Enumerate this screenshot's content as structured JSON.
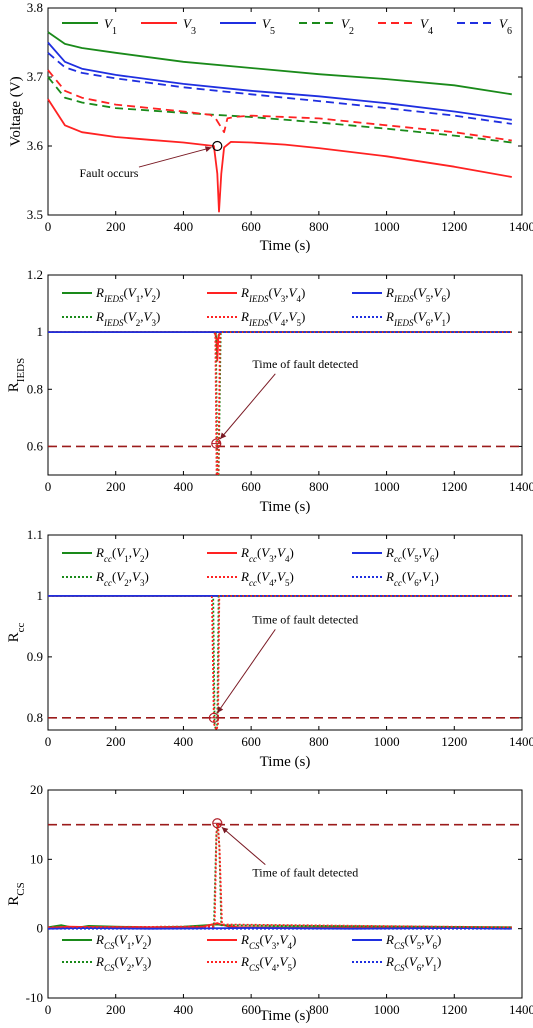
{
  "chart_data": [
    {
      "type": "line",
      "xlabel": "Time (s)",
      "ylabel": "Voltage (V)",
      "xlim": [
        0,
        1400
      ],
      "ylim": [
        3.5,
        3.8
      ],
      "xticks": [
        "0",
        "200",
        "400",
        "600",
        "800",
        "1000",
        "1200",
        "1400"
      ],
      "yticks": [
        "3.5",
        "3.6",
        "3.7",
        "3.8"
      ],
      "legend_position": "top",
      "series": [
        {
          "name": "V",
          "sub": "1",
          "color": "#1a8a1a",
          "dash": "solid",
          "x": [
            0,
            50,
            100,
            200,
            400,
            600,
            800,
            1000,
            1200,
            1370
          ],
          "y": [
            3.765,
            3.748,
            3.742,
            3.735,
            3.722,
            3.713,
            3.704,
            3.697,
            3.688,
            3.675
          ]
        },
        {
          "name": "V",
          "sub": "3",
          "color": "#ff2222",
          "dash": "solid",
          "x": [
            0,
            50,
            100,
            200,
            300,
            400,
            490,
            500,
            505,
            512,
            520,
            540,
            600,
            700,
            800,
            1000,
            1200,
            1370
          ],
          "y": [
            3.668,
            3.63,
            3.62,
            3.613,
            3.609,
            3.605,
            3.6,
            3.56,
            3.505,
            3.56,
            3.598,
            3.606,
            3.605,
            3.602,
            3.597,
            3.585,
            3.57,
            3.555
          ]
        },
        {
          "name": "V",
          "sub": "5",
          "color": "#1f2fe0",
          "dash": "solid",
          "x": [
            0,
            50,
            100,
            200,
            400,
            600,
            800,
            1000,
            1200,
            1370
          ],
          "y": [
            3.75,
            3.722,
            3.712,
            3.703,
            3.69,
            3.68,
            3.672,
            3.662,
            3.65,
            3.638
          ]
        },
        {
          "name": "V",
          "sub": "2",
          "color": "#1a8a1a",
          "dash": "dash",
          "x": [
            0,
            50,
            100,
            200,
            400,
            600,
            800,
            1000,
            1200,
            1370
          ],
          "y": [
            3.7,
            3.67,
            3.663,
            3.655,
            3.648,
            3.642,
            3.634,
            3.625,
            3.615,
            3.605
          ]
        },
        {
          "name": "V",
          "sub": "4",
          "color": "#ff2222",
          "dash": "dash",
          "x": [
            0,
            50,
            100,
            200,
            400,
            480,
            495,
            520,
            530,
            550,
            600,
            800,
            1000,
            1200,
            1370
          ],
          "y": [
            3.71,
            3.68,
            3.67,
            3.66,
            3.65,
            3.645,
            3.64,
            3.62,
            3.64,
            3.642,
            3.644,
            3.64,
            3.63,
            3.62,
            3.608
          ]
        },
        {
          "name": "V",
          "sub": "6",
          "color": "#1f2fe0",
          "dash": "dash",
          "x": [
            0,
            50,
            100,
            200,
            400,
            600,
            800,
            1000,
            1200,
            1370
          ],
          "y": [
            3.735,
            3.714,
            3.706,
            3.698,
            3.685,
            3.675,
            3.665,
            3.655,
            3.644,
            3.632
          ]
        }
      ],
      "marker": {
        "x": 500,
        "y": 3.6
      },
      "annotation": {
        "text": "Fault occurs",
        "x": 180,
        "y": 3.555
      }
    },
    {
      "type": "line",
      "xlabel": "Time (s)",
      "ylabel": "R",
      "ylabel_sub": "IEDS",
      "xlim": [
        0,
        1400
      ],
      "ylim": [
        0.5,
        1.2
      ],
      "xticks": [
        "0",
        "200",
        "400",
        "600",
        "800",
        "1000",
        "1200",
        "1400"
      ],
      "yticks": [
        "0.6",
        "0.8",
        "1",
        "1.2"
      ],
      "ytick_values": [
        0.6,
        0.8,
        1.0,
        1.2
      ],
      "legend_position": "top",
      "legend_sym": "R",
      "legend_sub": "IEDS",
      "legend_pairs": [
        [
          "1",
          "2"
        ],
        [
          "3",
          "4"
        ],
        [
          "5",
          "6"
        ],
        [
          "2",
          "3"
        ],
        [
          "4",
          "5"
        ],
        [
          "6",
          "1"
        ]
      ],
      "series": [
        {
          "name": "R_IEDS(V1,V2)",
          "color": "#1a8a1a",
          "dash": "solid",
          "x": [
            0,
            490,
            496,
            500,
            504,
            510,
            1370
          ],
          "y": [
            1.0,
            1.0,
            0.99,
            0.95,
            0.99,
            1.0,
            1.0
          ]
        },
        {
          "name": "R_IEDS(V3,V4)",
          "color": "#ff2222",
          "dash": "solid",
          "x": [
            0,
            492,
            497,
            500,
            503,
            508,
            1370
          ],
          "y": [
            1.0,
            1.0,
            0.98,
            0.9,
            0.98,
            1.0,
            1.0
          ]
        },
        {
          "name": "R_IEDS(V5,V6)",
          "color": "#1f2fe0",
          "dash": "solid",
          "x": [
            0,
            1370
          ],
          "y": [
            1.0,
            1.0
          ]
        },
        {
          "name": "R_IEDS(V2,V3)",
          "color": "#1a8a1a",
          "dash": "dot",
          "x": [
            0,
            496,
            500,
            504,
            510,
            1370
          ],
          "y": [
            1.0,
            1.0,
            0.5,
            0.5,
            1.0,
            1.0
          ]
        },
        {
          "name": "R_IEDS(V4,V5)",
          "color": "#ff2222",
          "dash": "dot",
          "x": [
            0,
            494,
            498,
            503,
            508,
            1370
          ],
          "y": [
            1.0,
            1.0,
            0.5,
            0.5,
            1.0,
            1.0
          ]
        },
        {
          "name": "R_IEDS(V6,V1)",
          "color": "#1f2fe0",
          "dash": "dot",
          "x": [
            0,
            1370
          ],
          "y": [
            1.0,
            1.0
          ]
        }
      ],
      "threshold": 0.6,
      "marker": {
        "x": 497,
        "y": 0.61
      },
      "annotation": {
        "text": "Time of fault detected",
        "x": 760,
        "y": 0.875
      }
    },
    {
      "type": "line",
      "xlabel": "Time (s)",
      "ylabel": "R",
      "ylabel_sub": "cc",
      "xlim": [
        0,
        1400
      ],
      "ylim": [
        0.78,
        1.1
      ],
      "xticks": [
        "0",
        "200",
        "400",
        "600",
        "800",
        "1000",
        "1200",
        "1400"
      ],
      "yticks": [
        "0.8",
        "0.9",
        "1",
        "1.1"
      ],
      "ytick_values": [
        0.8,
        0.9,
        1.0,
        1.1
      ],
      "legend_position": "top",
      "legend_sym": "R",
      "legend_sub": "cc",
      "legend_pairs": [
        [
          "1",
          "2"
        ],
        [
          "3",
          "4"
        ],
        [
          "5",
          "6"
        ],
        [
          "2",
          "3"
        ],
        [
          "4",
          "5"
        ],
        [
          "6",
          "1"
        ]
      ],
      "series": [
        {
          "name": "R_cc(V1,V2)",
          "color": "#1a8a1a",
          "dash": "solid",
          "x": [
            0,
            1370
          ],
          "y": [
            1.0,
            1.0
          ]
        },
        {
          "name": "R_cc(V3,V4)",
          "color": "#ff2222",
          "dash": "solid",
          "x": [
            0,
            1370
          ],
          "y": [
            1.0,
            1.0
          ]
        },
        {
          "name": "R_cc(V5,V6)",
          "color": "#1f2fe0",
          "dash": "solid",
          "x": [
            0,
            1370
          ],
          "y": [
            1.0,
            1.0
          ]
        },
        {
          "name": "R_cc(V2,V3)",
          "color": "#1a8a1a",
          "dash": "dot",
          "x": [
            0,
            488,
            492,
            496,
            500,
            504,
            1370
          ],
          "y": [
            1.0,
            1.0,
            0.79,
            0.78,
            0.79,
            1.0,
            1.0
          ]
        },
        {
          "name": "R_cc(V4,V5)",
          "color": "#ff2222",
          "dash": "dot",
          "x": [
            0,
            484,
            490,
            498,
            502,
            506,
            1370
          ],
          "y": [
            1.0,
            1.0,
            0.79,
            0.78,
            0.79,
            1.0,
            1.0
          ]
        },
        {
          "name": "R_cc(V6,V1)",
          "color": "#1f2fe0",
          "dash": "dot",
          "x": [
            0,
            1370
          ],
          "y": [
            1.0,
            1.0
          ]
        }
      ],
      "threshold": 0.8,
      "marker": {
        "x": 490,
        "y": 0.8
      },
      "annotation": {
        "text": "Time of fault detected",
        "x": 760,
        "y": 0.955
      }
    },
    {
      "type": "line",
      "xlabel": "Time (s)",
      "ylabel": "R",
      "ylabel_sub": "CS",
      "xlim": [
        0,
        1400
      ],
      "ylim": [
        -10,
        20
      ],
      "xticks": [
        "0",
        "200",
        "400",
        "600",
        "800",
        "1000",
        "1200",
        "1400"
      ],
      "yticks": [
        "-10",
        "0",
        "10",
        "20"
      ],
      "ytick_values": [
        -10,
        0,
        10,
        20
      ],
      "legend_position": "bottom",
      "legend_sym": "R",
      "legend_sub": "CS",
      "legend_pairs": [
        [
          "1",
          "2"
        ],
        [
          "3",
          "4"
        ],
        [
          "5",
          "6"
        ],
        [
          "2",
          "3"
        ],
        [
          "4",
          "5"
        ],
        [
          "6",
          "1"
        ]
      ],
      "series": [
        {
          "name": "R_CS(V1,V2)",
          "color": "#1a8a1a",
          "dash": "solid",
          "x": [
            0,
            40,
            80,
            120,
            200,
            300,
            400,
            500,
            520,
            540,
            700,
            900,
            1100,
            1370
          ],
          "y": [
            0.2,
            0.5,
            0.1,
            0.4,
            0.3,
            0.2,
            0.3,
            0.6,
            0.5,
            0.2,
            0.2,
            0.2,
            0.2,
            0.2
          ]
        },
        {
          "name": "R_CS(V3,V4)",
          "color": "#ff2222",
          "dash": "solid",
          "x": [
            0,
            60,
            150,
            300,
            450,
            500,
            510,
            530,
            560,
            700,
            1000,
            1370
          ],
          "y": [
            0.1,
            0.3,
            0.2,
            0.2,
            0.2,
            0.8,
            0.6,
            0.4,
            0.2,
            0.1,
            0.1,
            0.1
          ]
        },
        {
          "name": "R_CS(V5,V6)",
          "color": "#1f2fe0",
          "dash": "solid",
          "x": [
            0,
            100,
            300,
            600,
            900,
            1200,
            1370
          ],
          "y": [
            0.0,
            0.1,
            0.0,
            0.1,
            0.0,
            0.1,
            0.0
          ]
        },
        {
          "name": "R_CS(V2,V3)",
          "color": "#1a8a1a",
          "dash": "dot",
          "x": [
            0,
            490,
            497,
            501,
            506,
            512,
            1370
          ],
          "y": [
            0.2,
            0.3,
            13.5,
            15.0,
            12.0,
            0.5,
            0.2
          ]
        },
        {
          "name": "R_CS(V4,V5)",
          "color": "#ff2222",
          "dash": "dot",
          "x": [
            0,
            492,
            498,
            502,
            507,
            514,
            1370
          ],
          "y": [
            0.2,
            0.3,
            14.0,
            15.2,
            11.0,
            0.6,
            0.2
          ]
        },
        {
          "name": "R_CS(V6,V1)",
          "color": "#1f2fe0",
          "dash": "dot",
          "x": [
            0,
            1370
          ],
          "y": [
            0.0,
            0.0
          ]
        }
      ],
      "threshold": 15,
      "marker": {
        "x": 500,
        "y": 15.2
      },
      "annotation": {
        "text": "Time of fault detected",
        "x": 760,
        "y": 7.5
      }
    }
  ]
}
